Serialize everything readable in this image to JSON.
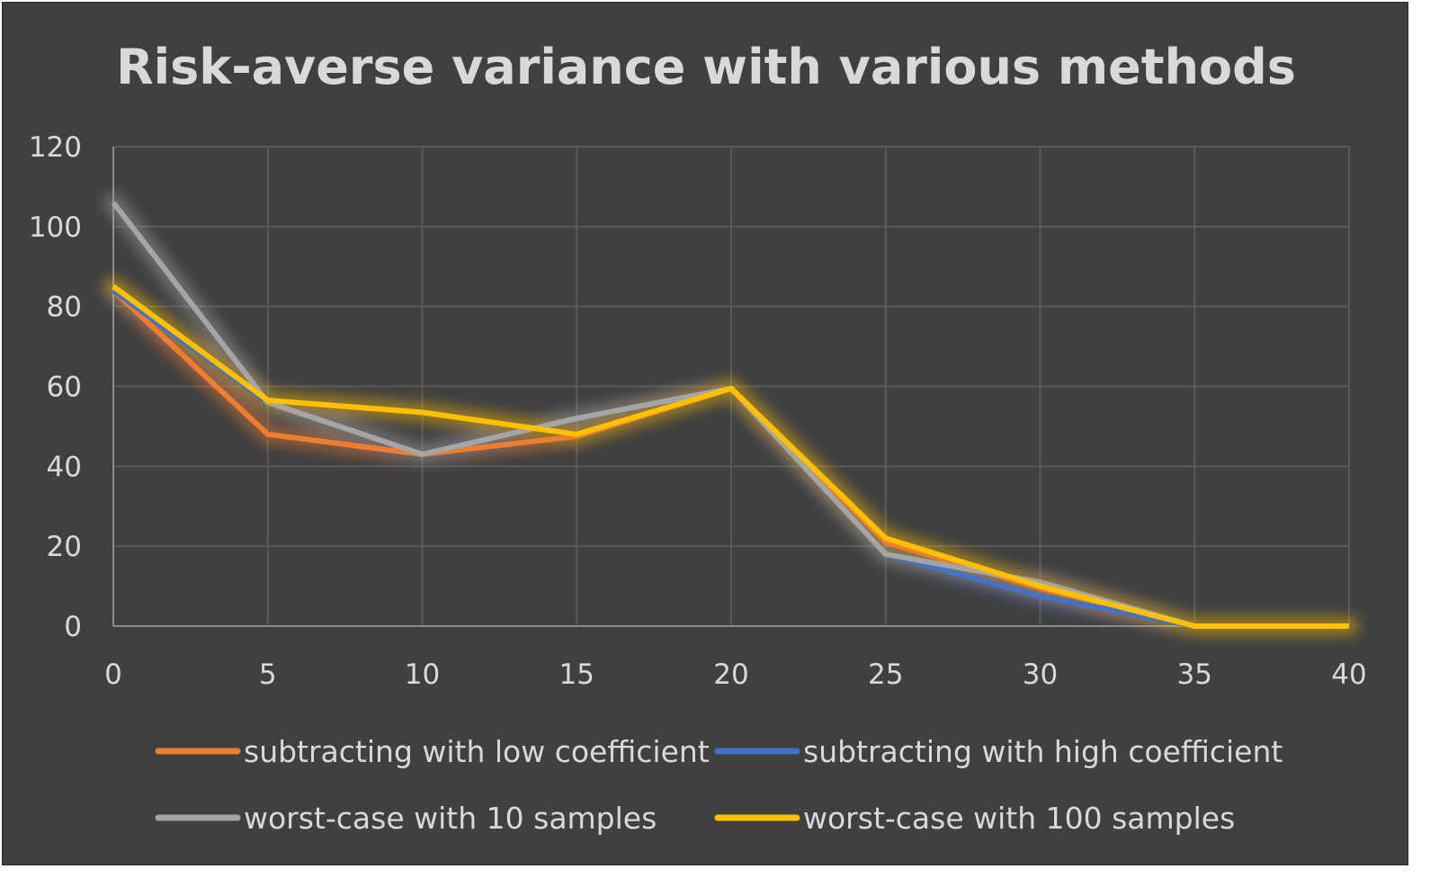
{
  "chart_data": {
    "type": "line",
    "title": "Risk-averse variance with various methods",
    "xlabel": "",
    "ylabel": "",
    "x": [
      0,
      5,
      10,
      15,
      20,
      25,
      30,
      35,
      40
    ],
    "xlim": [
      0,
      40
    ],
    "ylim": [
      0,
      120
    ],
    "x_ticks": [
      "0",
      "5",
      "10",
      "15",
      "20",
      "25",
      "30",
      "35",
      "40"
    ],
    "y_ticks": [
      "0",
      "20",
      "40",
      "60",
      "80",
      "100",
      "120"
    ],
    "grid": true,
    "legend_position": "bottom",
    "series": [
      {
        "name": "subtracting with low coefficient",
        "color": "#ED7D31",
        "values": [
          84,
          48,
          43,
          47.5,
          59.5,
          21,
          9.5,
          0,
          0
        ]
      },
      {
        "name": "subtracting with high coefficient",
        "color": "#4472C4",
        "values": [
          84,
          56,
          43,
          52,
          59.5,
          18,
          7.5,
          0,
          0
        ]
      },
      {
        "name": "worst-case with 10 samples",
        "color": "#A5A5A5",
        "values": [
          106,
          56,
          43,
          52,
          59.5,
          18,
          11,
          0,
          0
        ]
      },
      {
        "name": "worst-case with 100 samples",
        "color": "#FFC000",
        "values": [
          85,
          56.5,
          53.5,
          48,
          59.5,
          22,
          10,
          0,
          0
        ]
      }
    ]
  }
}
